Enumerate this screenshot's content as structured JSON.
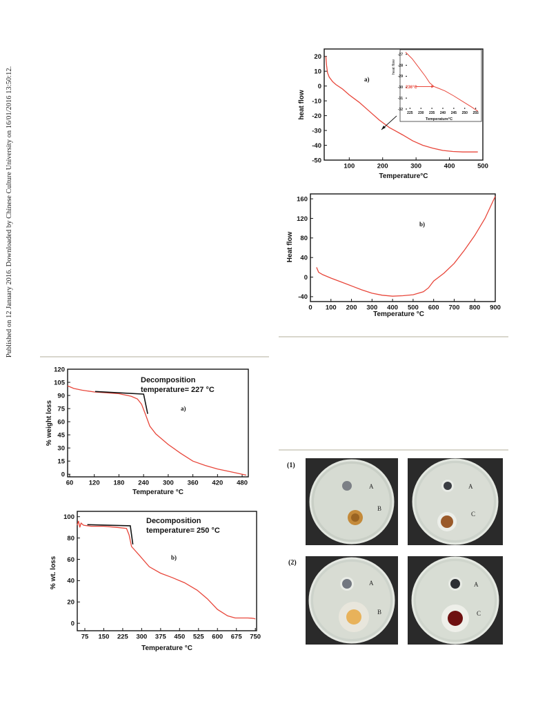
{
  "sidebar": {
    "text": "Published on 12 January 2016. Downloaded by Chinese Culture University on 16/01/2016 13:50:12."
  },
  "dsc_a": {
    "panel_label": "a)",
    "xlabel": "Temperature°C",
    "ylabel": "heat flow",
    "inset_xlabel": "Temperature°C",
    "inset_ylabel": "heat flow",
    "inset_annotation": "236°C"
  },
  "dsc_b": {
    "panel_label": "b)",
    "xlabel": "Temperature °C",
    "ylabel": "Heat flow"
  },
  "tga_a": {
    "panel_label": "a)",
    "annotation_line1": "Decomposition",
    "annotation_line2": "temperature= 227 °C",
    "xlabel": "Temperature °C",
    "ylabel": "% weight loss"
  },
  "tga_b": {
    "panel_label": "b)",
    "annotation_line1": "Decomposition",
    "annotation_line2": "temperature= 250 °C",
    "xlabel": "Temperature °C",
    "ylabel": "% wt. loss"
  },
  "petri": {
    "row1_label": "(1)",
    "row2_label": "(2)",
    "dishes": [
      {
        "label_top": "A",
        "label_bottom": "B"
      },
      {
        "label_top": "A",
        "label_bottom": "C"
      },
      {
        "label_top": "A",
        "label_bottom": "B"
      },
      {
        "label_top": "A",
        "label_bottom": "C"
      }
    ]
  },
  "colors": {
    "curve": "#e8463a",
    "tangent": "#111111",
    "rule": "#d8d6cc"
  },
  "chart_data": [
    {
      "type": "line",
      "id": "dsc_a",
      "title": "",
      "xlabel": "Temperature°C",
      "ylabel": "heat flow",
      "xlim": [
        25,
        500
      ],
      "ylim": [
        -50,
        25
      ],
      "xticks": [
        100,
        200,
        300,
        400,
        500
      ],
      "yticks": [
        20,
        10,
        0,
        -10,
        -20,
        -30,
        -40,
        -50
      ],
      "series": [
        {
          "x": [
            30,
            32,
            35,
            40,
            50,
            60,
            80,
            100,
            130,
            160,
            190,
            220,
            236,
            260,
            290,
            320,
            350,
            380,
            410,
            440,
            470,
            485
          ],
          "y": [
            20,
            14,
            9,
            6,
            3,
            1,
            -2,
            -6,
            -11,
            -17,
            -23,
            -28,
            -30,
            -33,
            -37,
            -40,
            -42,
            -43.5,
            -44.2,
            -44.5,
            -44.5,
            -44.5
          ]
        }
      ],
      "inset": {
        "xlim": [
          223,
          257
        ],
        "ylim": [
          -32,
          -26.7
        ],
        "xticks": [
          225,
          230,
          235,
          240,
          245,
          250,
          255
        ],
        "yticks": [
          -27,
          -28,
          -29,
          -30,
          -31,
          -32
        ],
        "series": [
          {
            "x": [
              223,
              226,
              229,
              232,
              234,
              236,
              238,
              241,
              245,
              249,
              253,
              256
            ],
            "y": [
              -26.8,
              -27.4,
              -28.2,
              -29.0,
              -29.6,
              -29.95,
              -30.1,
              -30.35,
              -30.8,
              -31.3,
              -31.8,
              -32.2
            ]
          }
        ]
      }
    },
    {
      "type": "line",
      "id": "dsc_b",
      "title": "",
      "xlabel": "Temperature °C",
      "ylabel": "Heat flow",
      "xlim": [
        0,
        900
      ],
      "ylim": [
        -50,
        170
      ],
      "xticks": [
        0,
        100,
        200,
        300,
        400,
        500,
        600,
        700,
        800,
        900
      ],
      "yticks": [
        160,
        120,
        80,
        40,
        0,
        -40
      ],
      "series": [
        {
          "x": [
            30,
            40,
            60,
            100,
            150,
            200,
            250,
            300,
            350,
            400,
            450,
            500,
            550,
            575,
            600,
            650,
            700,
            750,
            800,
            850,
            900
          ],
          "y": [
            20,
            10,
            5,
            -2,
            -10,
            -18,
            -26,
            -33,
            -37,
            -39,
            -38,
            -36,
            -30,
            -22,
            -8,
            8,
            28,
            55,
            85,
            120,
            165
          ]
        }
      ]
    },
    {
      "type": "line",
      "id": "tga_a",
      "title": "",
      "xlabel": "Temperature °C",
      "ylabel": "% weight loss",
      "xlim": [
        55,
        495
      ],
      "ylim": [
        -3,
        120
      ],
      "xticks": [
        60,
        120,
        180,
        240,
        300,
        360,
        420,
        480
      ],
      "yticks": [
        120,
        105,
        90,
        75,
        60,
        45,
        30,
        15,
        0
      ],
      "series": [
        {
          "x": [
            55,
            70,
            90,
            120,
            150,
            180,
            210,
            225,
            235,
            245,
            255,
            270,
            300,
            330,
            360,
            390,
            420,
            450,
            480,
            490
          ],
          "y": [
            101,
            98,
            96,
            94,
            93,
            92,
            89,
            86,
            80,
            68,
            55,
            46,
            34,
            24,
            15,
            10,
            6,
            3,
            0,
            -1
          ]
        }
      ],
      "tangent": {
        "x": [
          122,
          240,
          250
        ],
        "y": [
          94.5,
          91.5,
          69
        ]
      }
    },
    {
      "type": "line",
      "id": "tga_b",
      "title": "",
      "xlabel": "Temperature °C",
      "ylabel": "% wt. loss",
      "xlim": [
        45,
        755
      ],
      "ylim": [
        -7,
        105
      ],
      "xticks": [
        75,
        150,
        225,
        300,
        375,
        450,
        525,
        600,
        675,
        750
      ],
      "yticks": [
        100,
        80,
        60,
        40,
        20,
        0
      ],
      "series": [
        {
          "x": [
            45,
            50,
            55,
            60,
            70,
            100,
            150,
            200,
            240,
            250,
            260,
            290,
            330,
            375,
            420,
            470,
            520,
            560,
            600,
            640,
            670,
            700,
            720,
            735,
            745,
            750
          ],
          "y": [
            92,
            96,
            90,
            94,
            92,
            91,
            91,
            90,
            89,
            83,
            72,
            64,
            53,
            47,
            43,
            38,
            31,
            23,
            13,
            7,
            5,
            5,
            5,
            4.8,
            4.5,
            4
          ]
        }
      ],
      "tangent": {
        "x": [
          85,
          255,
          265
        ],
        "y": [
          92.5,
          91.5,
          74
        ]
      }
    }
  ]
}
